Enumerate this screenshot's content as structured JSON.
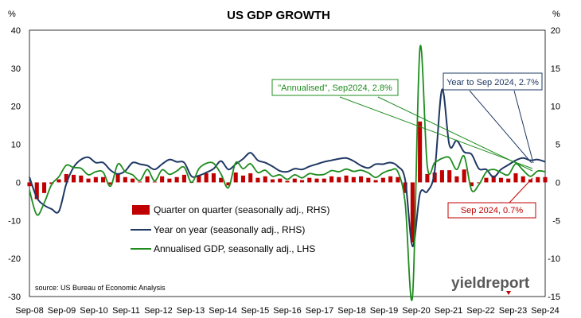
{
  "chart_data": {
    "type": "bar+line",
    "title": "US GDP GROWTH",
    "left_axis": {
      "unit_label": "%",
      "ylim": [
        -30,
        40
      ],
      "ticks": [
        -30,
        -20,
        -10,
        0,
        10,
        20,
        30,
        40
      ]
    },
    "right_axis": {
      "unit_label": "%",
      "ylim": [
        -15,
        20
      ],
      "ticks": [
        -15,
        -10,
        -5,
        0,
        5,
        10,
        15,
        20
      ]
    },
    "x_ticks": [
      "Sep-08",
      "Sep-09",
      "Sep-10",
      "Sep-11",
      "Sep-12",
      "Sep-13",
      "Sep-14",
      "Sep-15",
      "Sep-16",
      "Sep-17",
      "Sep-18",
      "Sep-19",
      "Sep-20",
      "Sep-21",
      "Sep-22",
      "Sep-23",
      "Sep-24"
    ],
    "series": [
      {
        "name": "Quarter on quarter (seasonally adj., RHS)",
        "type": "bar",
        "axis": "right",
        "color": "#c00000",
        "values": [
          -0.5,
          -2.2,
          -1.4,
          -0.2,
          0.4,
          1.1,
          1.0,
          0.9,
          0.5,
          0.7,
          0.7,
          -0.3,
          1.2,
          0.7,
          0.5,
          0.1,
          0.8,
          0.1,
          0.8,
          0.5,
          0.7,
          1.0,
          0.0,
          0.9,
          1.2,
          1.2,
          0.6,
          -0.4,
          1.3,
          0.9,
          1.2,
          0.6,
          0.8,
          0.4,
          0.5,
          0.2,
          0.5,
          0.3,
          0.6,
          0.5,
          0.5,
          0.8,
          0.7,
          0.9,
          0.7,
          0.8,
          0.6,
          0.3,
          0.6,
          0.8,
          0.7,
          -1.4,
          -7.9,
          8.0,
          1.1,
          1.3,
          1.6,
          1.6,
          0.8,
          1.7,
          -0.5,
          -0.1,
          0.6,
          0.9,
          0.6,
          0.5,
          1.2,
          0.8,
          0.4,
          0.7,
          0.7
        ],
        "label": "Sep 2024, 0.7%"
      },
      {
        "name": "Year on year (seasonally adj., RHS)",
        "type": "line",
        "axis": "right",
        "color": "#1f3864",
        "values": [
          0.7,
          -2.0,
          -3.0,
          -3.5,
          -3.8,
          -0.2,
          2.0,
          3.0,
          3.3,
          2.6,
          2.6,
          1.6,
          1.1,
          1.5,
          2.6,
          2.4,
          2.2,
          1.7,
          2.4,
          3.0,
          2.7,
          2.6,
          0.8,
          0.9,
          1.3,
          1.8,
          2.8,
          1.7,
          2.4,
          3.1,
          3.9,
          2.9,
          2.6,
          2.1,
          1.5,
          1.4,
          1.8,
          1.7,
          2.1,
          2.4,
          2.7,
          2.9,
          3.1,
          3.2,
          2.8,
          2.2,
          1.9,
          2.4,
          2.4,
          2.6,
          2.1,
          0.3,
          -8.4,
          -1.5,
          -1.2,
          1.5,
          12.2,
          4.9,
          5.5,
          4.0,
          3.7,
          1.8,
          1.7,
          0.7,
          1.7,
          2.3,
          2.9,
          3.2,
          2.9,
          3.0,
          2.7
        ],
        "label": "Year to Sep 2024, 2.7%"
      },
      {
        "name": "Annualised GDP, seasonally adj., LHS",
        "type": "line",
        "axis": "left",
        "color": "#1e8c1e",
        "values": [
          -2.0,
          -8.5,
          -5.4,
          -0.6,
          1.5,
          4.5,
          3.9,
          3.7,
          2.0,
          2.8,
          2.7,
          -1.0,
          4.8,
          2.8,
          2.0,
          0.5,
          3.4,
          0.4,
          3.3,
          2.1,
          3.0,
          4.0,
          0.0,
          3.6,
          5.0,
          5.0,
          2.2,
          -1.4,
          5.2,
          3.6,
          4.9,
          2.6,
          3.2,
          1.6,
          2.0,
          0.8,
          2.0,
          1.2,
          2.3,
          2.0,
          2.1,
          3.1,
          2.8,
          3.5,
          2.9,
          3.2,
          2.5,
          1.3,
          2.5,
          3.2,
          2.8,
          -5.5,
          -29.9,
          35.3,
          4.2,
          5.2,
          6.3,
          6.5,
          3.4,
          6.9,
          -2.0,
          -0.6,
          2.7,
          3.4,
          2.6,
          2.0,
          4.9,
          3.2,
          1.6,
          3.0,
          2.8
        ],
        "label": "\"Annualised\", Sep2024, 2.8%"
      }
    ],
    "legend_position": "bottom-left inside",
    "source": "source: US Bureau of Economic Analysis",
    "logo": "yieldreport"
  }
}
